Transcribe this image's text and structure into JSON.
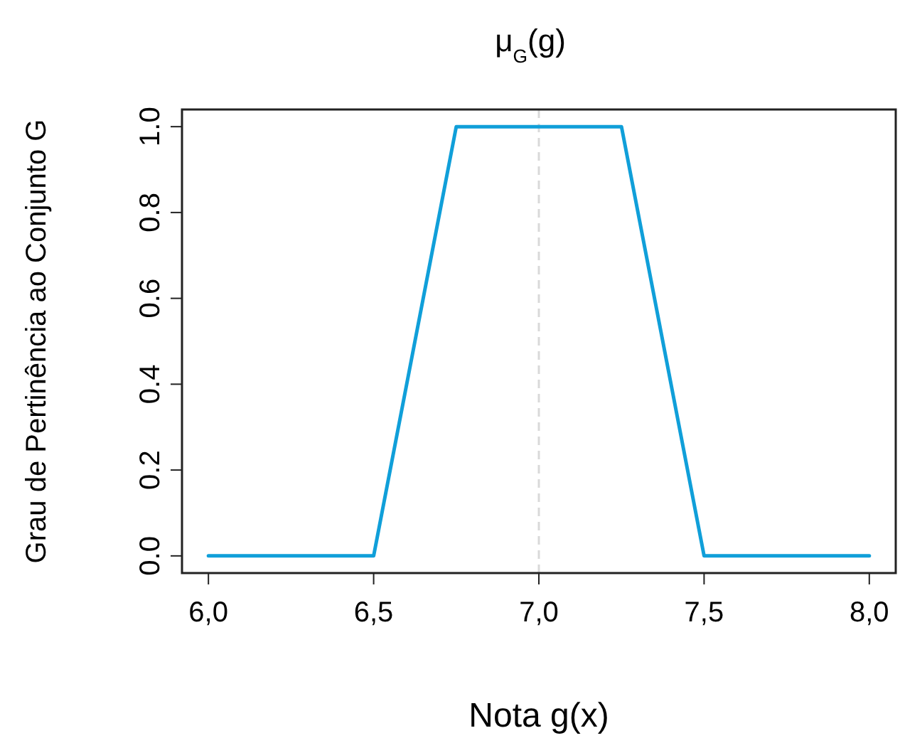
{
  "chart_data": {
    "type": "line",
    "title": "μ$_{G}$(g)",
    "xlabel": "Nota g(x)",
    "ylabel": "Grau de Pertinência ao Conjunto G",
    "x": [
      6,
      6.5,
      6.75,
      7.25,
      7.5,
      8
    ],
    "series": [
      {
        "color": "#109fd9",
        "values": [
          0,
          0,
          1,
          1,
          0,
          0
        ]
      }
    ],
    "xlim": [
      5.92,
      8.08
    ],
    "ylim": [
      -0.04,
      1.04
    ],
    "xticks": [
      {
        "value": 6,
        "label": "6,0"
      },
      {
        "value": 6.5,
        "label": "6,5"
      },
      {
        "value": 7,
        "label": "7,0"
      },
      {
        "value": 7.5,
        "label": "7,5"
      },
      {
        "value": 8,
        "label": "8,0"
      }
    ],
    "yticks": [
      {
        "value": 0,
        "label": "0.0"
      },
      {
        "value": 0.2,
        "label": "0.2"
      },
      {
        "value": 0.4,
        "label": "0.4"
      },
      {
        "value": 0.6,
        "label": "0.6"
      },
      {
        "value": 0.8,
        "label": "0.8"
      },
      {
        "value": 1,
        "label": "1.0"
      }
    ],
    "ref_lines": [
      {
        "axis": "x",
        "value": 7,
        "color": "#d9d9d9",
        "line_style": "dashed"
      }
    ],
    "marker": "none",
    "line_style": "solid"
  }
}
